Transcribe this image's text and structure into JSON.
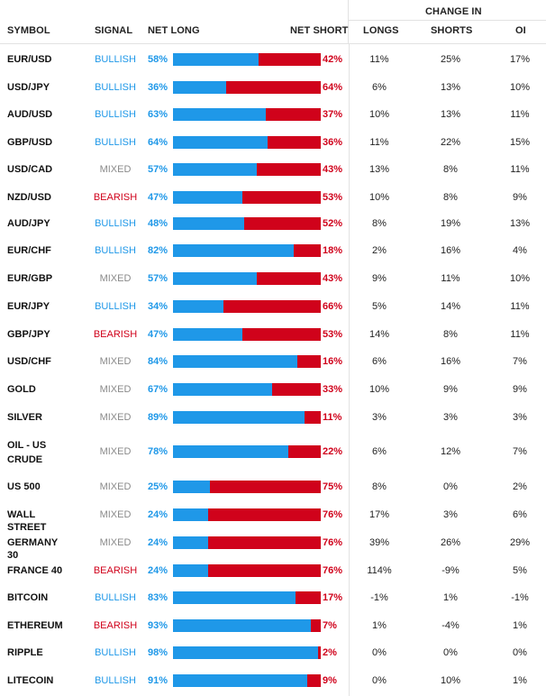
{
  "header": {
    "symbol": "SYMBOL",
    "signal": "SIGNAL",
    "net_long": "NET LONG",
    "net_short": "NET SHORT",
    "change_in": "CHANGE IN",
    "longs": "LONGS",
    "shorts": "SHORTS",
    "oi": "OI"
  },
  "colors": {
    "bullish": "#1f98e8",
    "bearish": "#d0021b",
    "mixed": "#8a8a8a"
  },
  "rows": [
    {
      "symbol": "EUR/USD",
      "signal": "BULLISH",
      "net_long": "58%",
      "net_short": "42%",
      "long_fraction": 0.58,
      "longs": "11%",
      "shorts": "25%",
      "oi": "17%"
    },
    {
      "symbol": "USD/JPY",
      "signal": "BULLISH",
      "net_long": "36%",
      "net_short": "64%",
      "long_fraction": 0.36,
      "longs": "6%",
      "shorts": "13%",
      "oi": "10%"
    },
    {
      "symbol": "AUD/USD",
      "signal": "BULLISH",
      "net_long": "63%",
      "net_short": "37%",
      "long_fraction": 0.63,
      "longs": "10%",
      "shorts": "13%",
      "oi": "11%"
    },
    {
      "symbol": "GBP/USD",
      "signal": "BULLISH",
      "net_long": "64%",
      "net_short": "36%",
      "long_fraction": 0.64,
      "longs": "11%",
      "shorts": "22%",
      "oi": "15%"
    },
    {
      "symbol": "USD/CAD",
      "signal": "MIXED",
      "net_long": "57%",
      "net_short": "43%",
      "long_fraction": 0.57,
      "longs": "13%",
      "shorts": "8%",
      "oi": "11%"
    },
    {
      "symbol": "NZD/USD",
      "signal": "BEARISH",
      "net_long": "47%",
      "net_short": "53%",
      "long_fraction": 0.47,
      "longs": "10%",
      "shorts": "8%",
      "oi": "9%"
    },
    {
      "symbol": "AUD/JPY",
      "signal": "BULLISH",
      "net_long": "48%",
      "net_short": "52%",
      "long_fraction": 0.48,
      "longs": "8%",
      "shorts": "19%",
      "oi": "13%"
    },
    {
      "symbol": "EUR/CHF",
      "signal": "BULLISH",
      "net_long": "82%",
      "net_short": "18%",
      "long_fraction": 0.82,
      "longs": "2%",
      "shorts": "16%",
      "oi": "4%"
    },
    {
      "symbol": "EUR/GBP",
      "signal": "MIXED",
      "net_long": "57%",
      "net_short": "43%",
      "long_fraction": 0.57,
      "longs": "9%",
      "shorts": "11%",
      "oi": "10%"
    },
    {
      "symbol": "EUR/JPY",
      "signal": "BULLISH",
      "net_long": "34%",
      "net_short": "66%",
      "long_fraction": 0.34,
      "longs": "5%",
      "shorts": "14%",
      "oi": "11%"
    },
    {
      "symbol": "GBP/JPY",
      "signal": "BEARISH",
      "net_long": "47%",
      "net_short": "53%",
      "long_fraction": 0.47,
      "longs": "14%",
      "shorts": "8%",
      "oi": "11%"
    },
    {
      "symbol": "USD/CHF",
      "signal": "MIXED",
      "net_long": "84%",
      "net_short": "16%",
      "long_fraction": 0.84,
      "longs": "6%",
      "shorts": "16%",
      "oi": "7%"
    },
    {
      "symbol": "GOLD",
      "signal": "MIXED",
      "net_long": "67%",
      "net_short": "33%",
      "long_fraction": 0.67,
      "longs": "10%",
      "shorts": "9%",
      "oi": "9%"
    },
    {
      "symbol": "SILVER",
      "signal": "MIXED",
      "net_long": "89%",
      "net_short": "11%",
      "long_fraction": 0.89,
      "longs": "3%",
      "shorts": "3%",
      "oi": "3%"
    },
    {
      "symbol": "OIL - US CRUDE",
      "signal": "MIXED",
      "net_long": "78%",
      "net_short": "22%",
      "long_fraction": 0.78,
      "longs": "6%",
      "shorts": "12%",
      "oi": "7%"
    },
    {
      "symbol": "US 500",
      "signal": "MIXED",
      "net_long": "25%",
      "net_short": "75%",
      "long_fraction": 0.25,
      "longs": "8%",
      "shorts": "0%",
      "oi": "2%"
    },
    {
      "symbol": "WALL STREET",
      "signal": "MIXED",
      "net_long": "24%",
      "net_short": "76%",
      "long_fraction": 0.24,
      "longs": "17%",
      "shorts": "3%",
      "oi": "6%"
    },
    {
      "symbol": "GERMANY 30",
      "signal": "MIXED",
      "net_long": "24%",
      "net_short": "76%",
      "long_fraction": 0.24,
      "longs": "39%",
      "shorts": "26%",
      "oi": "29%"
    },
    {
      "symbol": "FRANCE 40",
      "signal": "BEARISH",
      "net_long": "24%",
      "net_short": "76%",
      "long_fraction": 0.24,
      "longs": "114%",
      "shorts": "-9%",
      "oi": "5%"
    },
    {
      "symbol": "BITCOIN",
      "signal": "BULLISH",
      "net_long": "83%",
      "net_short": "17%",
      "long_fraction": 0.83,
      "longs": "-1%",
      "shorts": "1%",
      "oi": "-1%"
    },
    {
      "symbol": "ETHEREUM",
      "signal": "BEARISH",
      "net_long": "93%",
      "net_short": "7%",
      "long_fraction": 0.93,
      "longs": "1%",
      "shorts": "-4%",
      "oi": "1%"
    },
    {
      "symbol": "RIPPLE",
      "signal": "BULLISH",
      "net_long": "98%",
      "net_short": "2%",
      "long_fraction": 0.98,
      "longs": "0%",
      "shorts": "0%",
      "oi": "0%"
    },
    {
      "symbol": "LITECOIN",
      "signal": "BULLISH",
      "net_long": "91%",
      "net_short": "9%",
      "long_fraction": 0.91,
      "longs": "0%",
      "shorts": "10%",
      "oi": "1%"
    }
  ]
}
